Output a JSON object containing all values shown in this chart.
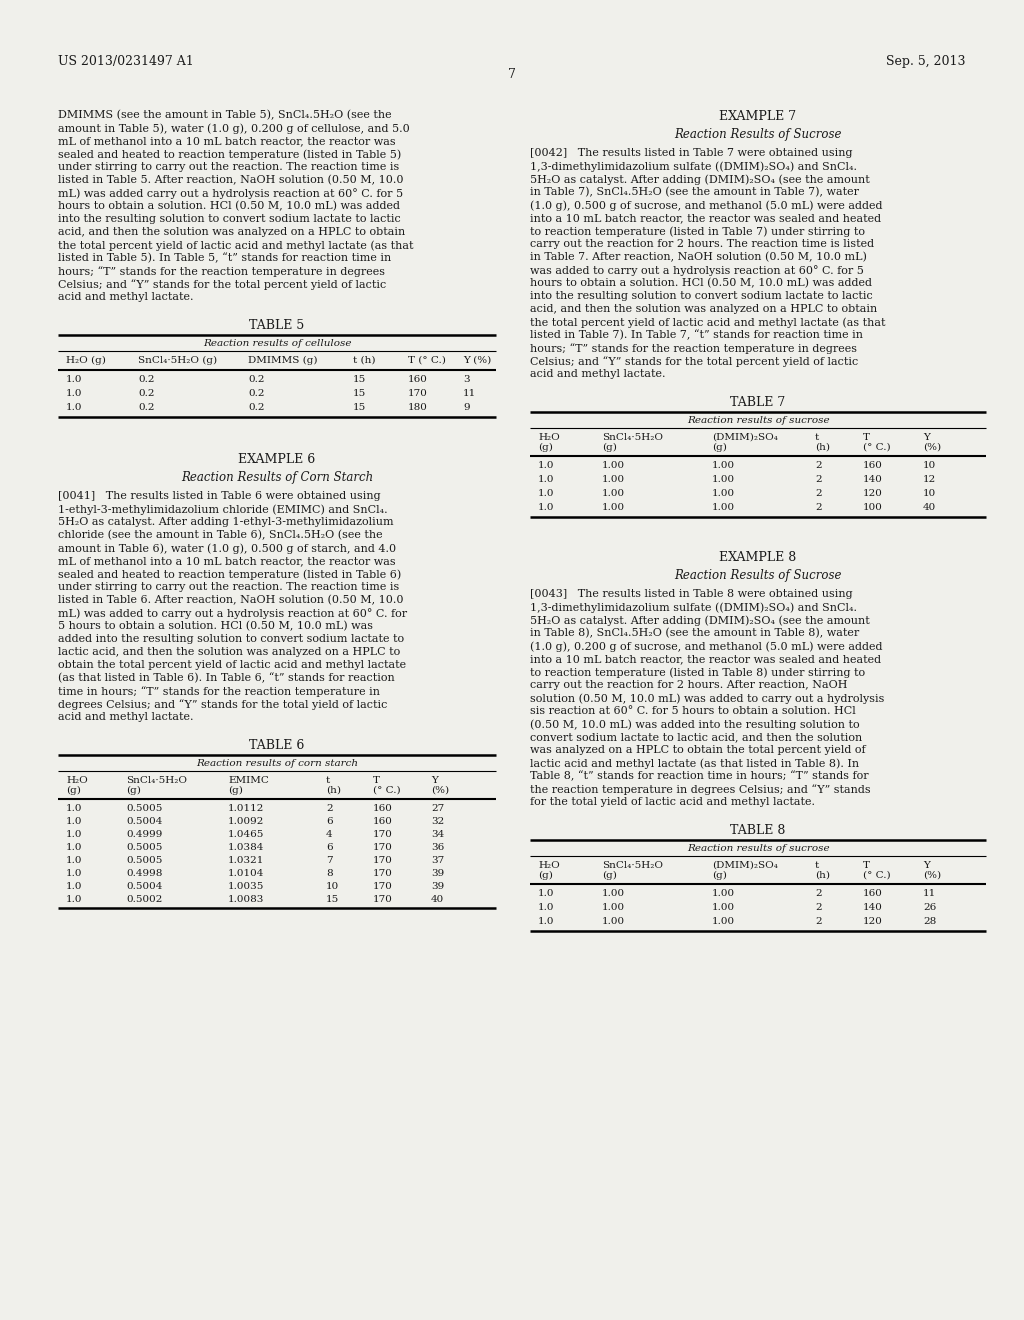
{
  "bg_color": "#f0f0eb",
  "text_color": "#1a1a1a",
  "page_number": "7",
  "header_left": "US 2013/0231497 A1",
  "header_right": "Sep. 5, 2013",
  "table5": {
    "headers": [
      "H₂O (g)",
      "SnCl₄·5H₂O (g)",
      "DMIMMS (g)",
      "t (h)",
      "T (° C.)",
      "Y (%)"
    ],
    "rows": [
      [
        "1.0",
        "0.2",
        "0.2",
        "15",
        "160",
        "3"
      ],
      [
        "1.0",
        "0.2",
        "0.2",
        "15",
        "170",
        "11"
      ],
      [
        "1.0",
        "0.2",
        "0.2",
        "15",
        "180",
        "9"
      ]
    ]
  },
  "table6": {
    "headers": [
      "H₂O\n(g)",
      "SnCl₄·5H₂O\n(g)",
      "EMIMC\n(g)",
      "t\n(h)",
      "T\n(° C.)",
      "Y\n(%)"
    ],
    "rows": [
      [
        "1.0",
        "0.5005",
        "1.0112",
        "2",
        "160",
        "27"
      ],
      [
        "1.0",
        "0.5004",
        "1.0092",
        "6",
        "160",
        "32"
      ],
      [
        "1.0",
        "0.4999",
        "1.0465",
        "4",
        "170",
        "34"
      ],
      [
        "1.0",
        "0.5005",
        "1.0384",
        "6",
        "170",
        "36"
      ],
      [
        "1.0",
        "0.5005",
        "1.0321",
        "7",
        "170",
        "37"
      ],
      [
        "1.0",
        "0.4998",
        "1.0104",
        "8",
        "170",
        "39"
      ],
      [
        "1.0",
        "0.5004",
        "1.0035",
        "10",
        "170",
        "39"
      ],
      [
        "1.0",
        "0.5002",
        "1.0083",
        "15",
        "170",
        "40"
      ]
    ]
  },
  "table7": {
    "headers": [
      "H₂O\n(g)",
      "SnCl₄·5H₂O\n(g)",
      "(DMIM)₂SO₄\n(g)",
      "t\n(h)",
      "T\n(° C.)",
      "Y\n(%)"
    ],
    "rows": [
      [
        "1.0",
        "1.00",
        "1.00",
        "2",
        "160",
        "10"
      ],
      [
        "1.0",
        "1.00",
        "1.00",
        "2",
        "140",
        "12"
      ],
      [
        "1.0",
        "1.00",
        "1.00",
        "2",
        "120",
        "10"
      ],
      [
        "1.0",
        "1.00",
        "1.00",
        "2",
        "100",
        "40"
      ]
    ]
  },
  "table8": {
    "headers": [
      "H₂O\n(g)",
      "SnCl₄·5H₂O\n(g)",
      "(DMIM)₂SO₄\n(g)",
      "t\n(h)",
      "T\n(° C.)",
      "Y\n(%)"
    ],
    "rows": [
      [
        "1.0",
        "1.00",
        "1.00",
        "2",
        "160",
        "11"
      ],
      [
        "1.0",
        "1.00",
        "1.00",
        "2",
        "140",
        "26"
      ],
      [
        "1.0",
        "1.00",
        "1.00",
        "2",
        "120",
        "28"
      ]
    ]
  }
}
